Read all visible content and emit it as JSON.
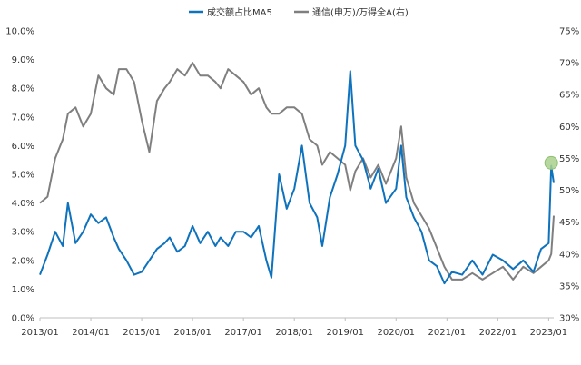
{
  "chart_data": {
    "type": "line",
    "grid": false,
    "legend_position": "top-center",
    "x_ticks": [
      "2013/01",
      "2014/01",
      "2015/01",
      "2016/01",
      "2017/01",
      "2018/01",
      "2019/01",
      "2020/01",
      "2021/01",
      "2022/01",
      "2023/01"
    ],
    "y_left": {
      "min": 0,
      "max": 10,
      "ticks": [
        "0.0%",
        "1.0%",
        "2.0%",
        "3.0%",
        "4.0%",
        "5.0%",
        "6.0%",
        "7.0%",
        "8.0%",
        "9.0%",
        "10.0%"
      ]
    },
    "y_right": {
      "min": 30,
      "max": 75,
      "ticks": [
        "30%",
        "35%",
        "40%",
        "45%",
        "50%",
        "55%",
        "60%",
        "65%",
        "70%",
        "75%"
      ]
    },
    "series": [
      {
        "name": "成交额占比MA5",
        "axis": "left",
        "color": "#0e72bd",
        "x": [
          2013.0,
          2013.15,
          2013.3,
          2013.45,
          2013.55,
          2013.7,
          2013.85,
          2014.0,
          2014.15,
          2014.3,
          2014.45,
          2014.55,
          2014.7,
          2014.85,
          2015.0,
          2015.15,
          2015.3,
          2015.45,
          2015.55,
          2015.7,
          2015.85,
          2016.0,
          2016.15,
          2016.3,
          2016.45,
          2016.55,
          2016.7,
          2016.85,
          2017.0,
          2017.15,
          2017.3,
          2017.45,
          2017.55,
          2017.7,
          2017.85,
          2018.0,
          2018.15,
          2018.3,
          2018.45,
          2018.55,
          2018.7,
          2018.85,
          2019.0,
          2019.1,
          2019.2,
          2019.35,
          2019.5,
          2019.65,
          2019.8,
          2020.0,
          2020.1,
          2020.2,
          2020.35,
          2020.5,
          2020.65,
          2020.8,
          2020.95,
          2021.1,
          2021.3,
          2021.5,
          2021.7,
          2021.9,
          2022.1,
          2022.3,
          2022.5,
          2022.7,
          2022.85,
          2023.0,
          2023.05,
          2023.1
        ],
        "y": [
          1.5,
          2.2,
          3.0,
          2.5,
          4.0,
          2.6,
          3.0,
          3.6,
          3.3,
          3.5,
          2.8,
          2.4,
          2.0,
          1.5,
          1.6,
          2.0,
          2.4,
          2.6,
          2.8,
          2.3,
          2.5,
          3.2,
          2.6,
          3.0,
          2.5,
          2.8,
          2.5,
          3.0,
          3.0,
          2.8,
          3.2,
          2.0,
          1.4,
          5.0,
          3.8,
          4.5,
          6.0,
          4.0,
          3.5,
          2.5,
          4.2,
          5.0,
          6.0,
          8.6,
          6.0,
          5.5,
          4.5,
          5.2,
          4.0,
          4.5,
          6.0,
          4.2,
          3.5,
          3.0,
          2.0,
          1.8,
          1.2,
          1.6,
          1.5,
          2.0,
          1.5,
          2.2,
          2.0,
          1.7,
          2.0,
          1.6,
          2.4,
          2.6,
          5.3,
          4.7
        ]
      },
      {
        "name": "通信(申万)/万得全A(右)",
        "axis": "right",
        "color": "#7f7f7f",
        "x": [
          2013.0,
          2013.15,
          2013.3,
          2013.45,
          2013.55,
          2013.7,
          2013.85,
          2014.0,
          2014.15,
          2014.3,
          2014.45,
          2014.55,
          2014.7,
          2014.85,
          2015.0,
          2015.15,
          2015.3,
          2015.45,
          2015.55,
          2015.7,
          2015.85,
          2016.0,
          2016.15,
          2016.3,
          2016.45,
          2016.55,
          2016.7,
          2016.85,
          2017.0,
          2017.15,
          2017.3,
          2017.45,
          2017.55,
          2017.7,
          2017.85,
          2018.0,
          2018.15,
          2018.3,
          2018.45,
          2018.55,
          2018.7,
          2018.85,
          2019.0,
          2019.1,
          2019.2,
          2019.35,
          2019.5,
          2019.65,
          2019.8,
          2020.0,
          2020.1,
          2020.2,
          2020.35,
          2020.5,
          2020.65,
          2020.8,
          2020.95,
          2021.1,
          2021.3,
          2021.5,
          2021.7,
          2021.9,
          2022.1,
          2022.3,
          2022.5,
          2022.7,
          2022.85,
          2023.0,
          2023.05,
          2023.1
        ],
        "y": [
          48,
          49,
          55,
          58,
          62,
          63,
          60,
          62,
          68,
          66,
          65,
          69,
          69,
          67,
          61,
          56,
          64,
          66,
          67,
          69,
          68,
          70,
          68,
          68,
          67,
          66,
          69,
          68,
          67,
          65,
          66,
          63,
          62,
          62,
          63,
          63,
          62,
          58,
          57,
          54,
          56,
          55,
          54,
          50,
          53,
          55,
          52,
          54,
          51,
          55,
          60,
          52,
          48,
          46,
          44,
          41,
          38,
          36,
          36,
          37,
          36,
          37,
          38,
          36,
          38,
          37,
          38,
          39,
          40,
          46
        ]
      }
    ],
    "annotations": [
      {
        "type": "marker",
        "x": 2023.05,
        "y": 5.4,
        "axis": "left",
        "color": "#a9d18e"
      }
    ]
  }
}
